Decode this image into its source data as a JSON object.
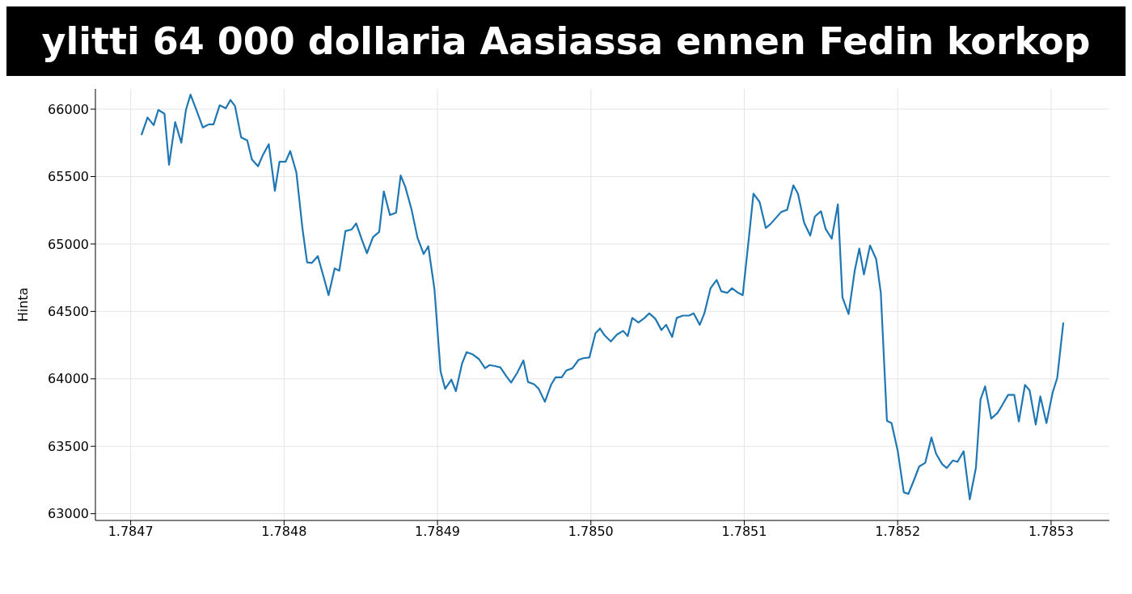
{
  "chart_data": {
    "type": "line",
    "title": "ylitti 64 000 dollaria Aasiassa ennen Fedin korkop",
    "ylabel": "Hinta",
    "x": [
      1.784707,
      1.784711,
      1.784715,
      1.784718,
      1.784722,
      1.784725,
      1.784729,
      1.784733,
      1.784736,
      1.784739,
      1.784743,
      1.784747,
      1.784751,
      1.784754,
      1.784758,
      1.784762,
      1.784765,
      1.784768,
      1.784772,
      1.784776,
      1.784779,
      1.784783,
      1.784786,
      1.78479,
      1.784794,
      1.784797,
      1.784801,
      1.784804,
      1.784808,
      1.784812,
      1.784815,
      1.784818,
      1.784822,
      1.784826,
      1.784829,
      1.784833,
      1.784836,
      1.78484,
      1.784844,
      1.784847,
      1.784851,
      1.784854,
      1.784858,
      1.784862,
      1.784865,
      1.784869,
      1.784873,
      1.784876,
      1.784879,
      1.784883,
      1.784887,
      1.784891,
      1.784894,
      1.784898,
      1.784902,
      1.784905,
      1.784909,
      1.784912,
      1.784916,
      1.784919,
      1.784923,
      1.784927,
      1.784931,
      1.784934,
      1.784937,
      1.784941,
      1.784945,
      1.784948,
      1.784952,
      1.784956,
      1.784959,
      1.784963,
      1.784966,
      1.78497,
      1.784974,
      1.784977,
      1.784981,
      1.784984,
      1.784988,
      1.784992,
      1.784995,
      1.784999,
      1.785003,
      1.785006,
      1.785009,
      1.785013,
      1.785017,
      1.785021,
      1.785024,
      1.785027,
      1.785031,
      1.785035,
      1.785038,
      1.785042,
      1.785046,
      1.785049,
      1.785053,
      1.785056,
      1.78506,
      1.785064,
      1.785067,
      1.785071,
      1.785074,
      1.785078,
      1.785082,
      1.785085,
      1.785089,
      1.785092,
      1.785096,
      1.785099,
      1.785103,
      1.785106,
      1.78511,
      1.785114,
      1.785117,
      1.785121,
      1.785124,
      1.785128,
      1.785132,
      1.785135,
      1.785139,
      1.785143,
      1.785146,
      1.78515,
      1.785153,
      1.785157,
      1.785161,
      1.785164,
      1.785168,
      1.785172,
      1.785175,
      1.785178,
      1.785182,
      1.785186,
      1.785189,
      1.785193,
      1.785196,
      1.7852,
      1.785204,
      1.785207,
      1.785211,
      1.785214,
      1.785218,
      1.785222,
      1.785225,
      1.785229,
      1.785232,
      1.785236,
      1.785239,
      1.785243,
      1.785247,
      1.785251,
      1.785254,
      1.785257,
      1.785261,
      1.785265,
      1.785268,
      1.785272,
      1.785276,
      1.785279,
      1.785283,
      1.785286,
      1.78529,
      1.785293,
      1.785297,
      1.785301,
      1.785304,
      1.785308
    ],
    "series": [
      {
        "color": "#1f77b4",
        "values": [
          65808,
          65938,
          65881,
          65994,
          65966,
          65588,
          65904,
          65751,
          65994,
          66107,
          65989,
          65864,
          65887,
          65887,
          66028,
          66006,
          66068,
          66023,
          65791,
          65768,
          65627,
          65576,
          65655,
          65740,
          65395,
          65610,
          65610,
          65689,
          65531,
          65113,
          64864,
          64859,
          64910,
          64746,
          64621,
          64819,
          64802,
          65096,
          65107,
          65153,
          65023,
          64932,
          65051,
          65090,
          65390,
          65215,
          65232,
          65508,
          65424,
          65260,
          65045,
          64926,
          64983,
          64667,
          64056,
          63926,
          63994,
          63909,
          64113,
          64198,
          64181,
          64147,
          64079,
          64102,
          64096,
          64085,
          64017,
          63972,
          64045,
          64136,
          63977,
          63960,
          63926,
          63830,
          63955,
          64011,
          64011,
          64062,
          64079,
          64141,
          64153,
          64158,
          64339,
          64373,
          64322,
          64277,
          64328,
          64356,
          64317,
          64452,
          64418,
          64452,
          64486,
          64446,
          64362,
          64401,
          64311,
          64452,
          64469,
          64469,
          64486,
          64401,
          64486,
          64672,
          64734,
          64650,
          64638,
          64672,
          64638,
          64621,
          65045,
          65373,
          65311,
          65119,
          65147,
          65198,
          65237,
          65254,
          65435,
          65373,
          65158,
          65062,
          65203,
          65243,
          65113,
          65040,
          65294,
          64604,
          64480,
          64802,
          64966,
          64774,
          64989,
          64887,
          64638,
          63689,
          63672,
          63469,
          63158,
          63147,
          63260,
          63350,
          63378,
          63565,
          63446,
          63367,
          63339,
          63395,
          63384,
          63463,
          63107,
          63339,
          63847,
          63944,
          63706,
          63746,
          63802,
          63881,
          63881,
          63684,
          63955,
          63915,
          63661,
          63870,
          63672,
          63898,
          64006,
          64418
        ]
      }
    ],
    "xlim": [
      1.784677,
      1.785338
    ],
    "xticks": [
      {
        "value": 1.7847,
        "label": "1.7847"
      },
      {
        "value": 1.7848,
        "label": "1.7848"
      },
      {
        "value": 1.7849,
        "label": "1.7849"
      },
      {
        "value": 1.785,
        "label": "1.7850"
      },
      {
        "value": 1.7851,
        "label": "1.7851"
      },
      {
        "value": 1.7852,
        "label": "1.7852"
      },
      {
        "value": 1.7853,
        "label": "1.7853"
      }
    ],
    "ylim": [
      62950,
      66150
    ],
    "yticks": [
      63000,
      63500,
      64000,
      64500,
      65000,
      65500,
      66000
    ],
    "grid": true,
    "marker": "none",
    "line_style": "solid"
  }
}
